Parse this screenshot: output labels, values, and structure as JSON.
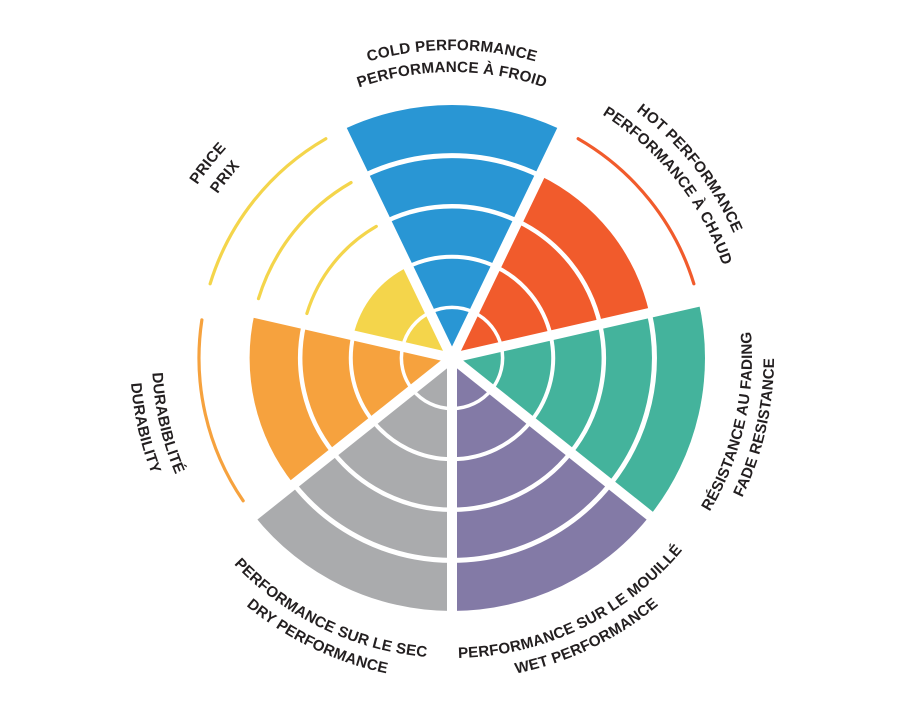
{
  "chart_data": {
    "type": "pie",
    "variant": "polar-rose-rating-wheel",
    "description": "Seven-sector circular rating wheel; each sector is filled from the center outward over 5 concentric rings according to its score. Unfilled ring boundaries are drawn as thin arcs in the sector color.",
    "max_rings": 5,
    "background": "#ffffff",
    "text_color": "#231f20",
    "legend_position": "around-perimeter",
    "grid": "white ring separators inside filled wedges",
    "sectors": [
      {
        "id": "cold-performance",
        "label_en": "COLD PERFORMANCE",
        "label_fr": "PERFORMANCE À FROID",
        "value": 5,
        "color": "#2996d4",
        "label_style": "top"
      },
      {
        "id": "hot-performance",
        "label_en": "HOT PERFORMANCE",
        "label_fr": "PERFORMANCE À CHAUD",
        "value": 4,
        "color": "#f15b2c",
        "label_style": "top"
      },
      {
        "id": "fade-resistance",
        "label_en": "FADE RESISTANCE",
        "label_fr": "RÉSISTANCE AU FADING",
        "value": 5,
        "color": "#44b39c",
        "label_style": "bottom"
      },
      {
        "id": "wet-performance",
        "label_en": "WET PERFORMANCE",
        "label_fr": "PERFORMANCE SUR LE MOUILLÉ",
        "value": 5,
        "color": "#837aa6",
        "label_style": "bottom"
      },
      {
        "id": "dry-performance",
        "label_en": "DRY PERFORMANCE",
        "label_fr": "PERFORMANCE SUR LE SEC",
        "value": 5,
        "color": "#aaabad",
        "label_style": "bottom"
      },
      {
        "id": "durability",
        "label_en": "DURABILITY",
        "label_fr": "DURABIBLITÉ",
        "value": 4,
        "color": "#f6a23e",
        "label_style": "bottom"
      },
      {
        "id": "price",
        "label_en": "PRICE",
        "label_fr": "PRIX",
        "value": 2,
        "color": "#f4d54b",
        "label_style": "top"
      }
    ]
  }
}
